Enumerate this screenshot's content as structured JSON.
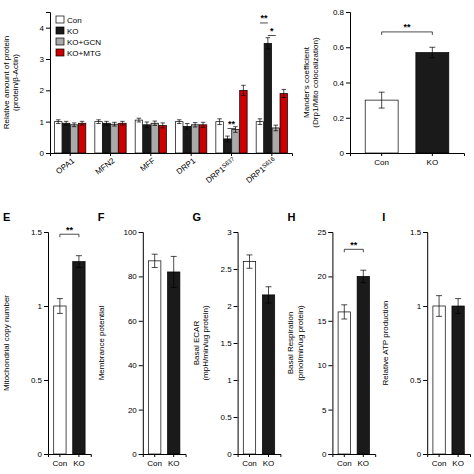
{
  "chart_data": [
    {
      "type": "bar",
      "categories": [
        "OPA1",
        "MFN2",
        "MFF",
        "DRP1",
        "DRP1S637",
        "DRP1S616"
      ],
      "series": [
        {
          "name": "Con",
          "color": "white",
          "values": [
            1.0,
            1.0,
            1.05,
            1.0,
            1.0,
            1.0
          ],
          "errors": [
            0.06,
            0.06,
            0.06,
            0.06,
            0.09,
            0.09
          ]
        },
        {
          "name": "KO",
          "color": "#1a1a1a",
          "values": [
            0.95,
            0.95,
            0.9,
            0.85,
            0.45,
            3.5
          ],
          "errors": [
            0.06,
            0.06,
            0.09,
            0.09,
            0.09,
            0.18
          ]
        },
        {
          "name": "KO+GCN",
          "color": "#aaaaaa",
          "values": [
            0.9,
            0.92,
            0.95,
            0.9,
            0.75,
            0.8
          ],
          "errors": [
            0.06,
            0.06,
            0.07,
            0.07,
            0.09,
            0.09
          ]
        },
        {
          "name": "KO+MTG",
          "color": "#cc0000",
          "values": [
            0.95,
            0.95,
            0.88,
            0.9,
            2.0,
            1.9
          ],
          "errors": [
            0.06,
            0.06,
            0.08,
            0.08,
            0.16,
            0.13
          ]
        }
      ],
      "ylabel": "Relative amount of protein\n(protein/β-Actin)",
      "ylim": [
        0,
        4.5
      ],
      "yticks": [
        0,
        1,
        2,
        3,
        4
      ],
      "legend": "upper left",
      "annotations": [
        {
          "text": "**",
          "y": 0.78,
          "category": "DRP1S637",
          "from": "KO",
          "to": "KO+GCN"
        },
        {
          "text": "*",
          "y": 3.75,
          "category": "DRP1S616",
          "from": "KO",
          "to": "KO+GCN"
        },
        {
          "text": "**",
          "y": 4.15,
          "category": "DRP1S616",
          "from": "Con",
          "to": "KO"
        }
      ]
    },
    {
      "type": "bar",
      "categories": [
        "Con",
        "KO"
      ],
      "values": [
        0.3,
        0.57
      ],
      "errors": [
        0.045,
        0.03
      ],
      "colors": [
        "white",
        "#1a1a1a"
      ],
      "ylabel": "Mander's coefficient\n(Drp1/Mito colocalization)",
      "ylim": [
        0,
        0.8
      ],
      "yticks": [
        0,
        0.2,
        0.4,
        0.6,
        0.8
      ],
      "annotations": [
        {
          "text": "**",
          "y": 0.687,
          "from": "Con",
          "to": "KO"
        }
      ]
    },
    {
      "type": "bar",
      "title": "E",
      "categories": [
        "Con",
        "KO"
      ],
      "values": [
        1.0,
        1.3
      ],
      "errors": [
        0.05,
        0.04
      ],
      "colors": [
        "white",
        "#1a1a1a"
      ],
      "ylabel": "Mitochondrial copy number",
      "ylim": [
        0,
        1.5
      ],
      "yticks": [
        0,
        0.5,
        1,
        1.5
      ],
      "annotations": [
        {
          "text": "**",
          "y": 1.485,
          "from": "Con",
          "to": "KO"
        }
      ]
    },
    {
      "type": "bar",
      "title": "F",
      "categories": [
        "Con",
        "KO"
      ],
      "values": [
        87,
        82
      ],
      "errors": [
        3,
        7
      ],
      "colors": [
        "white",
        "#1a1a1a"
      ],
      "ylabel": "Membrance potential",
      "ylim": [
        0,
        100
      ],
      "yticks": [
        0,
        20,
        40,
        60,
        80,
        100
      ]
    },
    {
      "type": "bar",
      "title": "G",
      "categories": [
        "Con",
        "KO"
      ],
      "values": [
        2.6,
        2.15
      ],
      "errors": [
        0.09,
        0.11
      ],
      "colors": [
        "white",
        "#1a1a1a"
      ],
      "ylabel": "Basal ECAR\n(mpH/min/ug protein)",
      "ylim": [
        0,
        3
      ],
      "yticks": [
        0,
        0.5,
        1,
        1.5,
        2,
        2.5,
        3
      ]
    },
    {
      "type": "bar",
      "title": "H",
      "categories": [
        "Con",
        "KO"
      ],
      "values": [
        16,
        20
      ],
      "errors": [
        0.8,
        0.7
      ],
      "colors": [
        "white",
        "#1a1a1a"
      ],
      "ylabel": "Basal Respiration\n(pmol/min/ug protein)",
      "ylim": [
        0,
        25
      ],
      "yticks": [
        0,
        5,
        10,
        15,
        20,
        25
      ],
      "annotations": [
        {
          "text": "**",
          "y": 23.05,
          "from": "Con",
          "to": "KO"
        }
      ]
    },
    {
      "type": "bar",
      "title": "I",
      "categories": [
        "Con",
        "KO"
      ],
      "values": [
        1.0,
        1.0
      ],
      "errors": [
        0.07,
        0.05
      ],
      "colors": [
        "white",
        "#1a1a1a"
      ],
      "ylabel": "Relative ATP production",
      "ylim": [
        0,
        1.5
      ],
      "yticks": [
        0,
        0.5,
        1,
        1.5
      ]
    }
  ]
}
